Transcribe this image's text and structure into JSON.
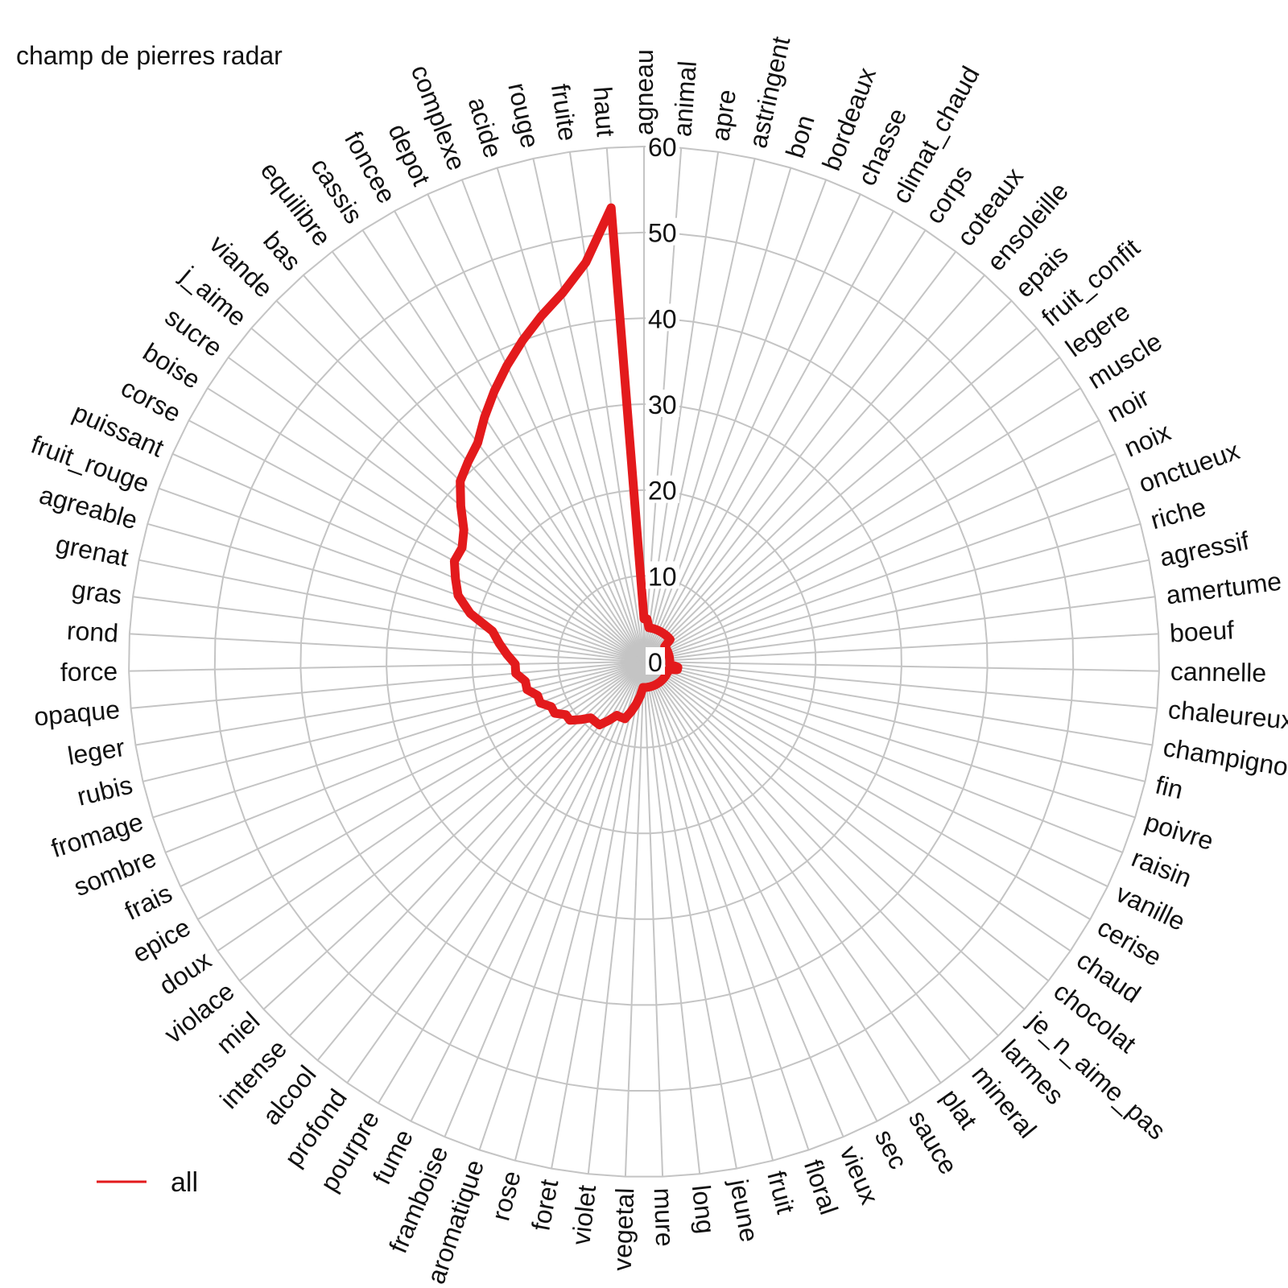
{
  "chart_data": {
    "type": "radar",
    "title": "champ de pierres radar",
    "rmin": 0,
    "rmax": 60,
    "ticks": [
      0,
      10,
      20,
      30,
      40,
      50,
      60
    ],
    "grid": true,
    "legend": "bottom-left",
    "categories": [
      "agneau",
      "animal",
      "apre",
      "astringent",
      "bon",
      "bordeaux",
      "chasse",
      "climat_chaud",
      "corps",
      "coteaux",
      "ensoleille",
      "epais",
      "fruit_confit",
      "legere",
      "muscle",
      "noir",
      "noix",
      "onctueux",
      "riche",
      "agressif",
      "amertume",
      "boeuf",
      "cannelle",
      "chaleureux",
      "champignon",
      "fin",
      "poivre",
      "raisin",
      "vanille",
      "cerise",
      "chaud",
      "chocolat",
      "je_n_aime_pas",
      "larmes",
      "mineral",
      "plat",
      "sauce",
      "sec",
      "vieux",
      "floral",
      "fruit",
      "jeune",
      "long",
      "mure",
      "vegetal",
      "violet",
      "foret",
      "rose",
      "aromatique",
      "framboise",
      "fume",
      "pourpre",
      "profond",
      "alcool",
      "intense",
      "miel",
      "violace",
      "doux",
      "epice",
      "frais",
      "sombre",
      "fromage",
      "rubis",
      "leger",
      "opaque",
      "force",
      "rond",
      "gras",
      "grenat",
      "agreable",
      "fruit_rouge",
      "puissant",
      "corse",
      "boise",
      "sucre",
      "j_aime",
      "viande",
      "bas",
      "equilibre",
      "cassis",
      "foncee",
      "depot",
      "complexe",
      "acide",
      "rouge",
      "fruite",
      "haut"
    ],
    "series": [
      {
        "name": "all",
        "color": "#e31a1c",
        "values": [
          5,
          5,
          4,
          4,
          4,
          4,
          4,
          4,
          4,
          4,
          4,
          4,
          4,
          3,
          3,
          3,
          3,
          3,
          3,
          3,
          3,
          3,
          3,
          3,
          4,
          4,
          3,
          3,
          3,
          3,
          3,
          3,
          3,
          3,
          3,
          3,
          3,
          3,
          3,
          3,
          3,
          3,
          3,
          3,
          3,
          4,
          5,
          6,
          7,
          7,
          7,
          8,
          9,
          9,
          9,
          10,
          11,
          11,
          12,
          12,
          13,
          13,
          14,
          14,
          15,
          15,
          16,
          17,
          18,
          21,
          23,
          24,
          25,
          25,
          26,
          28,
          30,
          31,
          32,
          34,
          36,
          38,
          40,
          42,
          44,
          47,
          53
        ]
      }
    ]
  }
}
